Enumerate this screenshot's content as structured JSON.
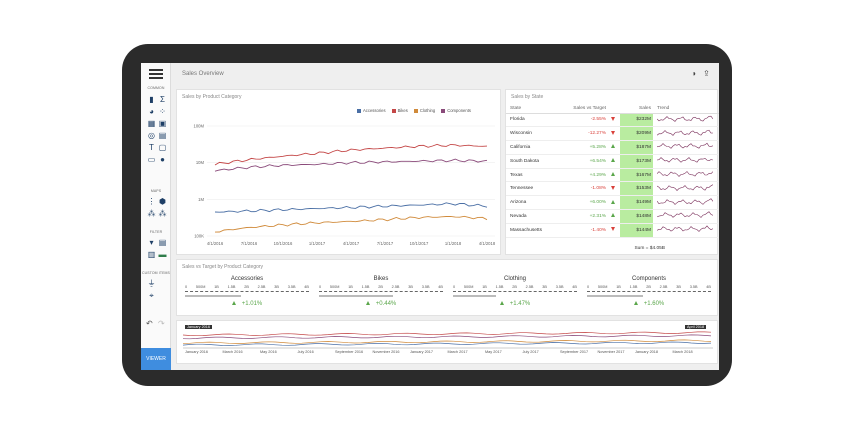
{
  "sidebar": {
    "sections": [
      "COMMON",
      "MAPS",
      "FILTER",
      "CUSTOM ITEMS"
    ],
    "viewer_label": "VIEWER",
    "icons": [
      "bar-chart-icon",
      "sigma-icon",
      "pie-chart-icon",
      "scatter-icon",
      "treemap-icon",
      "image-icon",
      "gauge-icon",
      "grid-icon",
      "text-icon",
      "card-icon",
      "frame-icon",
      "geo-point-icon",
      "choropleth-icon",
      "bubble-map-icon",
      "pie-map-icon",
      "combo-box-icon",
      "list-box-icon",
      "date-filter-icon",
      "range-filter-icon",
      "funnel-icon",
      "custom-icon",
      "map-pin-icon"
    ]
  },
  "header": {
    "title": "Sales Overview"
  },
  "category_panel": {
    "title": "Sales by Product Category",
    "chart_data": {
      "type": "line",
      "yscale": "log",
      "yticks": [
        "100M",
        "10M",
        "1M",
        "100K"
      ],
      "x": [
        "4/1/2016",
        "7/1/2016",
        "10/1/2016",
        "1/1/2017",
        "4/1/2017",
        "7/1/2017",
        "10/1/2017",
        "1/1/2018",
        "4/1/2018"
      ],
      "series": [
        {
          "name": "Accessories",
          "color": "#4a6fa5",
          "values": [
            450000,
            480000,
            520000,
            560000,
            600000,
            650000,
            700000,
            760000,
            650000
          ]
        },
        {
          "name": "Bikes",
          "color": "#c44747",
          "values": [
            9000000,
            12000000,
            15000000,
            18000000,
            22000000,
            25000000,
            28000000,
            30000000,
            28000000
          ]
        },
        {
          "name": "Clothing",
          "color": "#d08a3a",
          "values": [
            130000,
            170000,
            200000,
            230000,
            250000,
            280000,
            320000,
            340000,
            300000
          ]
        },
        {
          "name": "Components",
          "color": "#8a4a7a",
          "values": [
            6000000,
            7500000,
            8500000,
            9000000,
            10000000,
            10500000,
            11000000,
            11500000,
            11000000
          ]
        }
      ]
    }
  },
  "state_panel": {
    "title": "Sales by State",
    "columns": [
      "State",
      "Sales vs Target",
      "Sales",
      "Trend"
    ],
    "rows": [
      {
        "state": "Florida",
        "delta": "-2.55%",
        "dir": "down",
        "sales": "$232M"
      },
      {
        "state": "Wisconsin",
        "delta": "-12.27%",
        "dir": "down",
        "sales": "$209M"
      },
      {
        "state": "California",
        "delta": "+5.28%",
        "dir": "up",
        "sales": "$187M"
      },
      {
        "state": "South Dakota",
        "delta": "+6.54%",
        "dir": "up",
        "sales": "$173M"
      },
      {
        "state": "Texas",
        "delta": "+4.29%",
        "dir": "up",
        "sales": "$167M"
      },
      {
        "state": "Tennessee",
        "delta": "-1.08%",
        "dir": "down",
        "sales": "$153M"
      },
      {
        "state": "Arizona",
        "delta": "+6.00%",
        "dir": "up",
        "sales": "$149M"
      },
      {
        "state": "Nevada",
        "delta": "+2.31%",
        "dir": "up",
        "sales": "$148M"
      },
      {
        "state": "Massachusetts",
        "delta": "-1.40%",
        "dir": "down",
        "sales": "$144M"
      }
    ],
    "sum": "Sum = $4.05B"
  },
  "target_panel": {
    "title": "Sales vs Target by Product Category",
    "scale": [
      "0",
      "500M",
      "1B",
      "1.5B",
      "2B",
      "2.5B",
      "3B",
      "3.5B",
      "4B"
    ],
    "gauges": [
      {
        "name": "Accessories",
        "delta": "+1.01%",
        "fill": 0.45
      },
      {
        "name": "Bikes",
        "delta": "+0.44%",
        "fill": 0.6
      },
      {
        "name": "Clothing",
        "delta": "+1.47%",
        "fill": 0.35
      },
      {
        "name": "Components",
        "delta": "+1.60%",
        "fill": 0.45
      }
    ]
  },
  "range_panel": {
    "start_label": "January 2016",
    "end_label": "April 2018",
    "ticks": [
      "January 2016",
      "March 2016",
      "May 2016",
      "July 2016",
      "September 2016",
      "November 2016",
      "January 2017",
      "March 2017",
      "May 2017",
      "July 2017",
      "September 2017",
      "November 2017",
      "January 2018",
      "March 2018"
    ]
  }
}
